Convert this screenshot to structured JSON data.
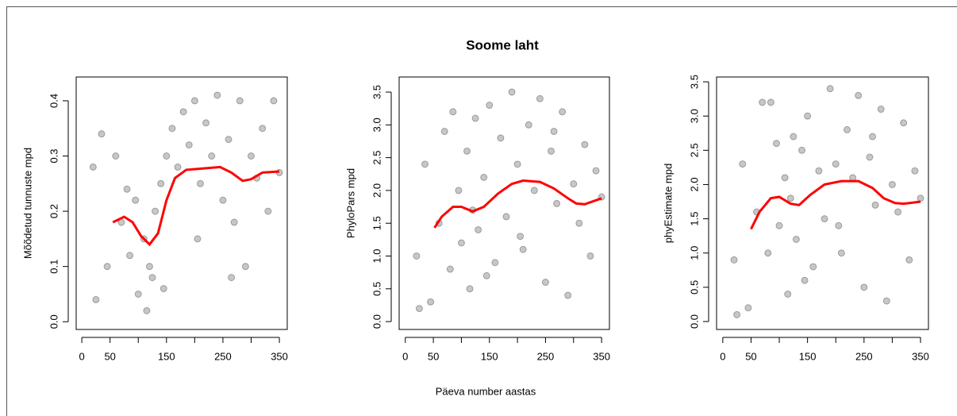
{
  "figure": {
    "title": "Soome laht",
    "xlabel": "Päeva number aastas"
  },
  "chart_data": [
    {
      "type": "scatter",
      "ylabel": "Mõõdetud tunnuste mpd",
      "xlim": [
        -10,
        364
      ],
      "ylim": [
        -0.014,
        0.443
      ],
      "xticks": [
        0,
        50,
        150,
        250,
        350
      ],
      "xticks_minor": [
        100,
        200,
        300
      ],
      "yticks": [
        {
          "value": 0,
          "label": "0.0"
        },
        0.1,
        0.2,
        0.3,
        0.4
      ],
      "points": {
        "color": "#000000",
        "x": [
          20,
          35,
          45,
          60,
          70,
          80,
          95,
          100,
          110,
          115,
          120,
          125,
          130,
          140,
          150,
          160,
          170,
          180,
          190,
          200,
          210,
          220,
          230,
          240,
          250,
          260,
          270,
          280,
          290,
          300,
          310,
          320,
          330,
          340,
          350,
          25,
          85,
          145,
          205,
          265
        ],
        "y": [
          0.28,
          0.34,
          0.1,
          0.3,
          0.18,
          0.24,
          0.22,
          0.05,
          0.15,
          0.02,
          0.1,
          0.08,
          0.2,
          0.25,
          0.3,
          0.35,
          0.28,
          0.38,
          0.32,
          0.4,
          0.25,
          0.36,
          0.3,
          0.41,
          0.22,
          0.33,
          0.18,
          0.4,
          0.1,
          0.3,
          0.26,
          0.35,
          0.2,
          0.4,
          0.27,
          0.04,
          0.12,
          0.06,
          0.15,
          0.08
        ]
      },
      "smooth": {
        "color": "#ff0000",
        "x": [
          55,
          75,
          90,
          105,
          120,
          135,
          150,
          165,
          185,
          210,
          245,
          265,
          285,
          300,
          320,
          350
        ],
        "y": [
          0.18,
          0.19,
          0.18,
          0.155,
          0.14,
          0.16,
          0.22,
          0.26,
          0.275,
          0.277,
          0.28,
          0.27,
          0.255,
          0.258,
          0.27,
          0.272
        ]
      }
    },
    {
      "type": "scatter",
      "ylabel": "PhyloPars mpd",
      "xlim": [
        -11,
        364
      ],
      "ylim": [
        -0.12,
        3.73
      ],
      "xticks": [
        0,
        50,
        150,
        250,
        350
      ],
      "xticks_minor": [
        100,
        200,
        300
      ],
      "yticks": [
        {
          "value": 0,
          "label": "0.0"
        },
        0.5,
        {
          "value": 1,
          "label": "1.0"
        },
        1.5,
        {
          "value": 2,
          "label": "2.0"
        },
        2.5,
        {
          "value": 3,
          "label": "3.0"
        },
        3.5
      ],
      "points": {
        "color": "#000000",
        "x": [
          20,
          35,
          45,
          60,
          70,
          80,
          95,
          100,
          110,
          115,
          120,
          125,
          130,
          140,
          150,
          160,
          170,
          180,
          190,
          200,
          210,
          220,
          230,
          240,
          250,
          260,
          270,
          280,
          290,
          300,
          310,
          320,
          330,
          340,
          350,
          25,
          85,
          145,
          205,
          265
        ],
        "y": [
          1.0,
          2.4,
          0.3,
          1.5,
          2.9,
          0.8,
          2.0,
          1.2,
          2.6,
          0.5,
          1.7,
          3.1,
          1.4,
          2.2,
          3.3,
          0.9,
          2.8,
          1.6,
          3.5,
          2.4,
          1.1,
          3.0,
          2.0,
          3.4,
          0.6,
          2.6,
          1.8,
          3.2,
          0.4,
          2.1,
          1.5,
          2.7,
          1.0,
          2.3,
          1.9,
          0.2,
          3.2,
          0.7,
          1.3,
          2.9
        ]
      },
      "smooth": {
        "color": "#ff0000",
        "x": [
          52,
          65,
          85,
          100,
          120,
          140,
          165,
          190,
          210,
          240,
          265,
          290,
          305,
          320,
          350
        ],
        "y": [
          1.43,
          1.6,
          1.75,
          1.75,
          1.68,
          1.75,
          1.95,
          2.1,
          2.15,
          2.13,
          2.03,
          1.88,
          1.8,
          1.79,
          1.88
        ]
      }
    },
    {
      "type": "scatter",
      "ylabel": "phyEstimate mpd",
      "xlim": [
        -11,
        364
      ],
      "ylim": [
        -0.116,
        3.57
      ],
      "xticks": [
        0,
        50,
        150,
        250,
        350
      ],
      "xticks_minor": [
        100,
        200,
        300
      ],
      "yticks": [
        {
          "value": 0,
          "label": "0.0"
        },
        0.5,
        {
          "value": 1,
          "label": "1.0"
        },
        1.5,
        {
          "value": 2,
          "label": "2.0"
        },
        2.5,
        {
          "value": 3,
          "label": "3.0"
        },
        3.5
      ],
      "points": {
        "color": "#000000",
        "x": [
          20,
          35,
          45,
          60,
          70,
          80,
          95,
          100,
          110,
          115,
          120,
          125,
          130,
          140,
          150,
          160,
          170,
          180,
          190,
          200,
          210,
          220,
          230,
          240,
          250,
          260,
          270,
          280,
          290,
          300,
          310,
          320,
          330,
          340,
          350,
          25,
          85,
          145,
          205,
          265
        ],
        "y": [
          0.9,
          2.3,
          0.2,
          1.6,
          3.2,
          1.0,
          2.6,
          1.4,
          2.1,
          0.4,
          1.8,
          2.7,
          1.2,
          2.5,
          3.0,
          0.8,
          2.2,
          1.5,
          3.4,
          2.3,
          1.0,
          2.8,
          2.1,
          3.3,
          0.5,
          2.4,
          1.7,
          3.1,
          0.3,
          2.0,
          1.6,
          2.9,
          0.9,
          2.2,
          1.8,
          0.1,
          3.2,
          0.6,
          1.4,
          2.7
        ]
      },
      "smooth": {
        "color": "#ff0000",
        "x": [
          50,
          65,
          85,
          100,
          120,
          135,
          155,
          180,
          210,
          240,
          265,
          285,
          305,
          320,
          350
        ],
        "y": [
          1.35,
          1.6,
          1.8,
          1.82,
          1.72,
          1.7,
          1.85,
          2.0,
          2.05,
          2.05,
          1.95,
          1.8,
          1.73,
          1.72,
          1.75
        ]
      }
    }
  ]
}
